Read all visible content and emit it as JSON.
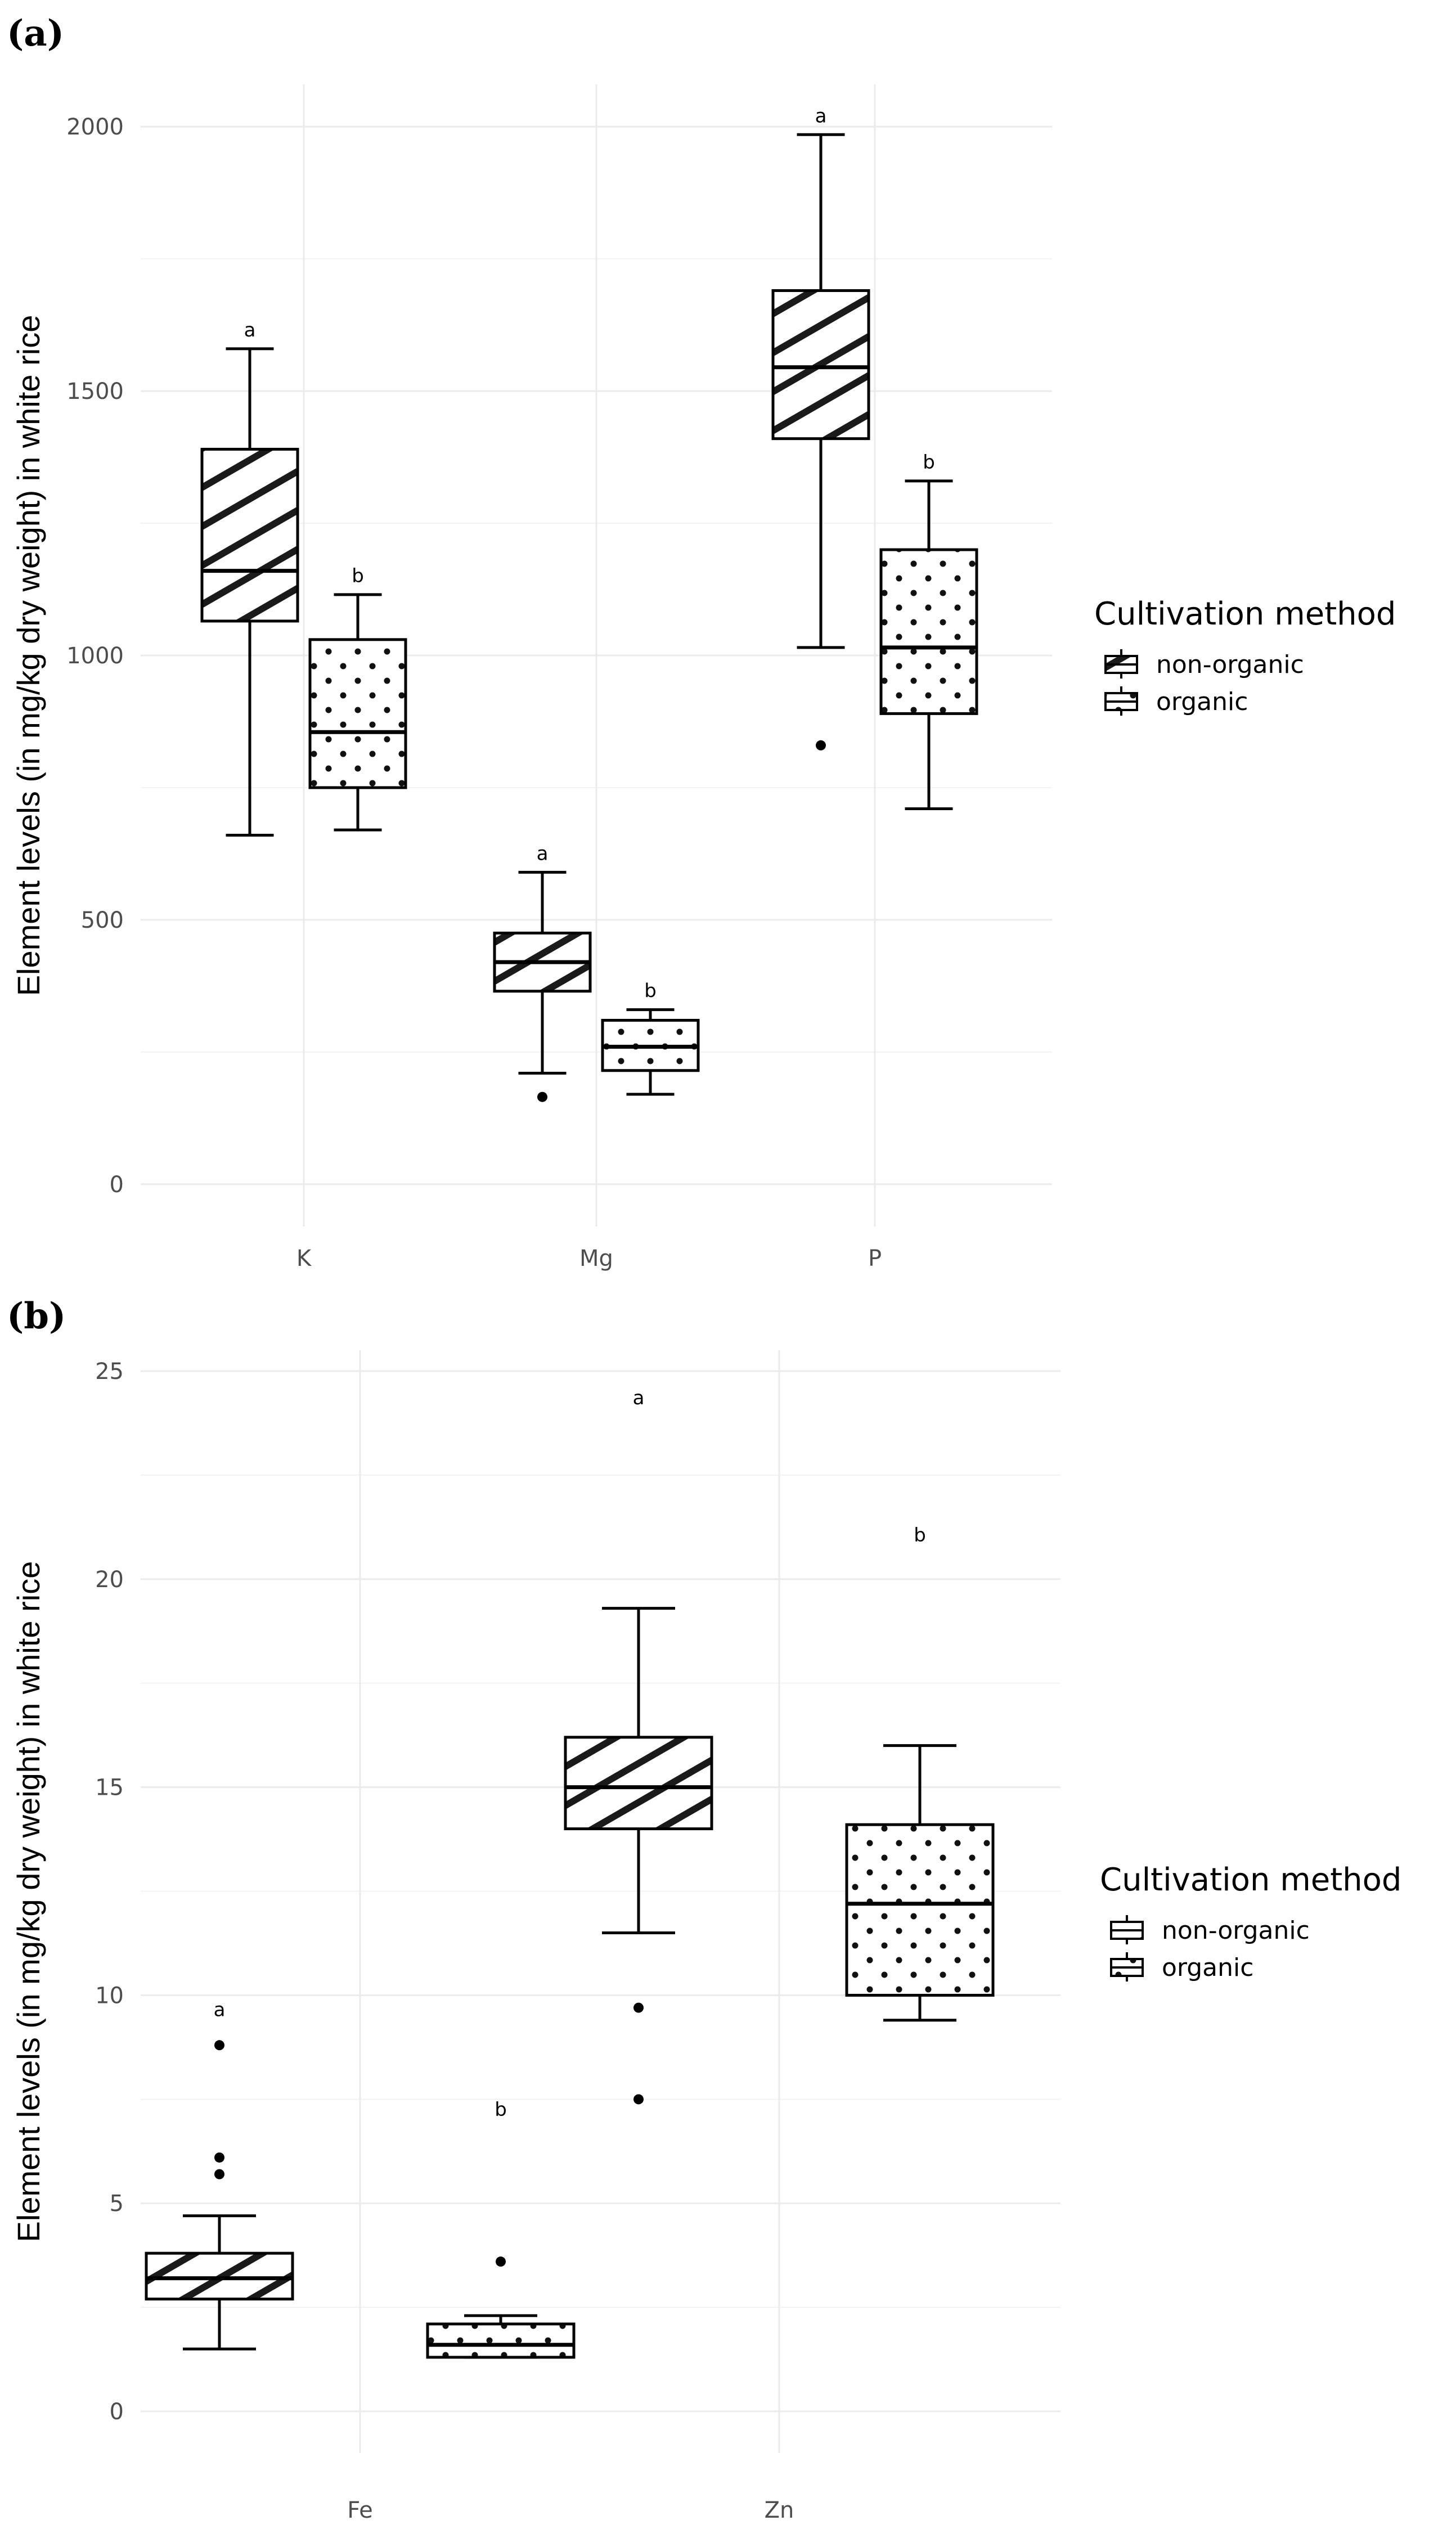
{
  "chart_data": [
    {
      "panel_label": "(a)",
      "type": "box",
      "xlabel": "",
      "ylabel": "Element levels (in mg/kg dry weight) in white rice",
      "ylim": [
        -80,
        2080
      ],
      "yticks": [
        0,
        500,
        1000,
        1500,
        2000
      ],
      "categories": [
        "K",
        "Mg",
        "P"
      ],
      "legend": {
        "title": "Cultivation method",
        "entries": [
          "non-organic",
          "organic"
        ],
        "position": "right"
      },
      "series": [
        {
          "name": "non-organic",
          "pattern": "hatch",
          "boxes": [
            {
              "category": "K",
              "min": 660,
              "q1": 1065,
              "median": 1160,
              "q3": 1390,
              "max": 1580,
              "outliers": [],
              "letter": "a"
            },
            {
              "category": "Mg",
              "min": 210,
              "q1": 365,
              "median": 420,
              "q3": 475,
              "max": 590,
              "outliers": [
                165
              ],
              "letter": "a"
            },
            {
              "category": "P",
              "min": 1015,
              "q1": 1410,
              "median": 1545,
              "q3": 1690,
              "max": 1985,
              "outliers": [
                830
              ],
              "letter": "a"
            }
          ]
        },
        {
          "name": "organic",
          "pattern": "dots",
          "boxes": [
            {
              "category": "K",
              "min": 670,
              "q1": 750,
              "median": 855,
              "q3": 1030,
              "max": 1115,
              "outliers": [],
              "letter": "b"
            },
            {
              "category": "Mg",
              "min": 170,
              "q1": 215,
              "median": 260,
              "q3": 310,
              "max": 330,
              "outliers": [],
              "letter": "b"
            },
            {
              "category": "P",
              "min": 710,
              "q1": 890,
              "median": 1015,
              "q3": 1200,
              "max": 1330,
              "outliers": [],
              "letter": "b"
            }
          ]
        }
      ]
    },
    {
      "panel_label": "(b)",
      "type": "box",
      "xlabel": "",
      "ylabel": "Element levels (in mg/kg dry weight) in white rice",
      "ylim": [
        -1,
        25.5
      ],
      "yticks": [
        0,
        5,
        10,
        15,
        20,
        25
      ],
      "categories": [
        "Fe",
        "Zn"
      ],
      "legend": {
        "title": "Cultivation method",
        "entries": [
          "non-organic",
          "organic"
        ],
        "position": "right"
      },
      "series": [
        {
          "name": "non-organic",
          "pattern": "hatch",
          "boxes": [
            {
              "category": "Fe",
              "min": 1.5,
              "q1": 2.7,
              "median": 3.2,
              "q3": 3.8,
              "max": 4.7,
              "outliers": [
                5.7,
                6.1,
                8.8
              ],
              "letter": "a",
              "letter_y": 9.5
            },
            {
              "category": "Zn",
              "min": 11.5,
              "q1": 14.0,
              "median": 15.0,
              "q3": 16.2,
              "max": 19.3,
              "outliers": [
                7.5,
                9.7
              ],
              "letter": "a",
              "letter_y": 24.2
            }
          ]
        },
        {
          "name": "organic",
          "pattern": "dots",
          "boxes": [
            {
              "category": "Fe",
              "min": 1.3,
              "q1": 1.3,
              "median": 1.6,
              "q3": 2.1,
              "max": 2.3,
              "outliers": [
                3.6
              ],
              "letter": "b",
              "letter_y": 7.1
            },
            {
              "category": "Zn",
              "min": 9.4,
              "q1": 10.0,
              "median": 12.2,
              "q3": 14.1,
              "max": 16.0,
              "outliers": [],
              "letter": "b",
              "letter_y": 20.9
            }
          ]
        }
      ]
    }
  ]
}
